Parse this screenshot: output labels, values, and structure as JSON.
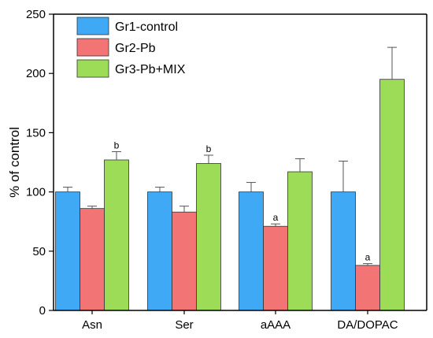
{
  "chart_data": {
    "type": "bar",
    "ylabel": "% of control",
    "ylim": [
      0,
      250
    ],
    "yticks": [
      0,
      50,
      100,
      150,
      200,
      250
    ],
    "categories": [
      "Asn",
      "Ser",
      "aAAA",
      "DA/DOPAC"
    ],
    "series": [
      {
        "name": "Gr1-control",
        "color": "#3fa9f5",
        "values": [
          100,
          100,
          100,
          100
        ],
        "errors": [
          4,
          4,
          8,
          26
        ],
        "labels": [
          "",
          "",
          "",
          ""
        ]
      },
      {
        "name": "Gr2-Pb",
        "color": "#f27474",
        "values": [
          86,
          83,
          71,
          38
        ],
        "errors": [
          2,
          5,
          2,
          1.5
        ],
        "labels": [
          "",
          "",
          "a",
          "a"
        ]
      },
      {
        "name": "Gr3-Pb+MIX",
        "color": "#9ddc57",
        "values": [
          127,
          124,
          117,
          195
        ],
        "errors": [
          7,
          7,
          11,
          27
        ],
        "labels": [
          "b",
          "b",
          "",
          ""
        ]
      }
    ],
    "legend_position": "top-left",
    "grid": false
  }
}
